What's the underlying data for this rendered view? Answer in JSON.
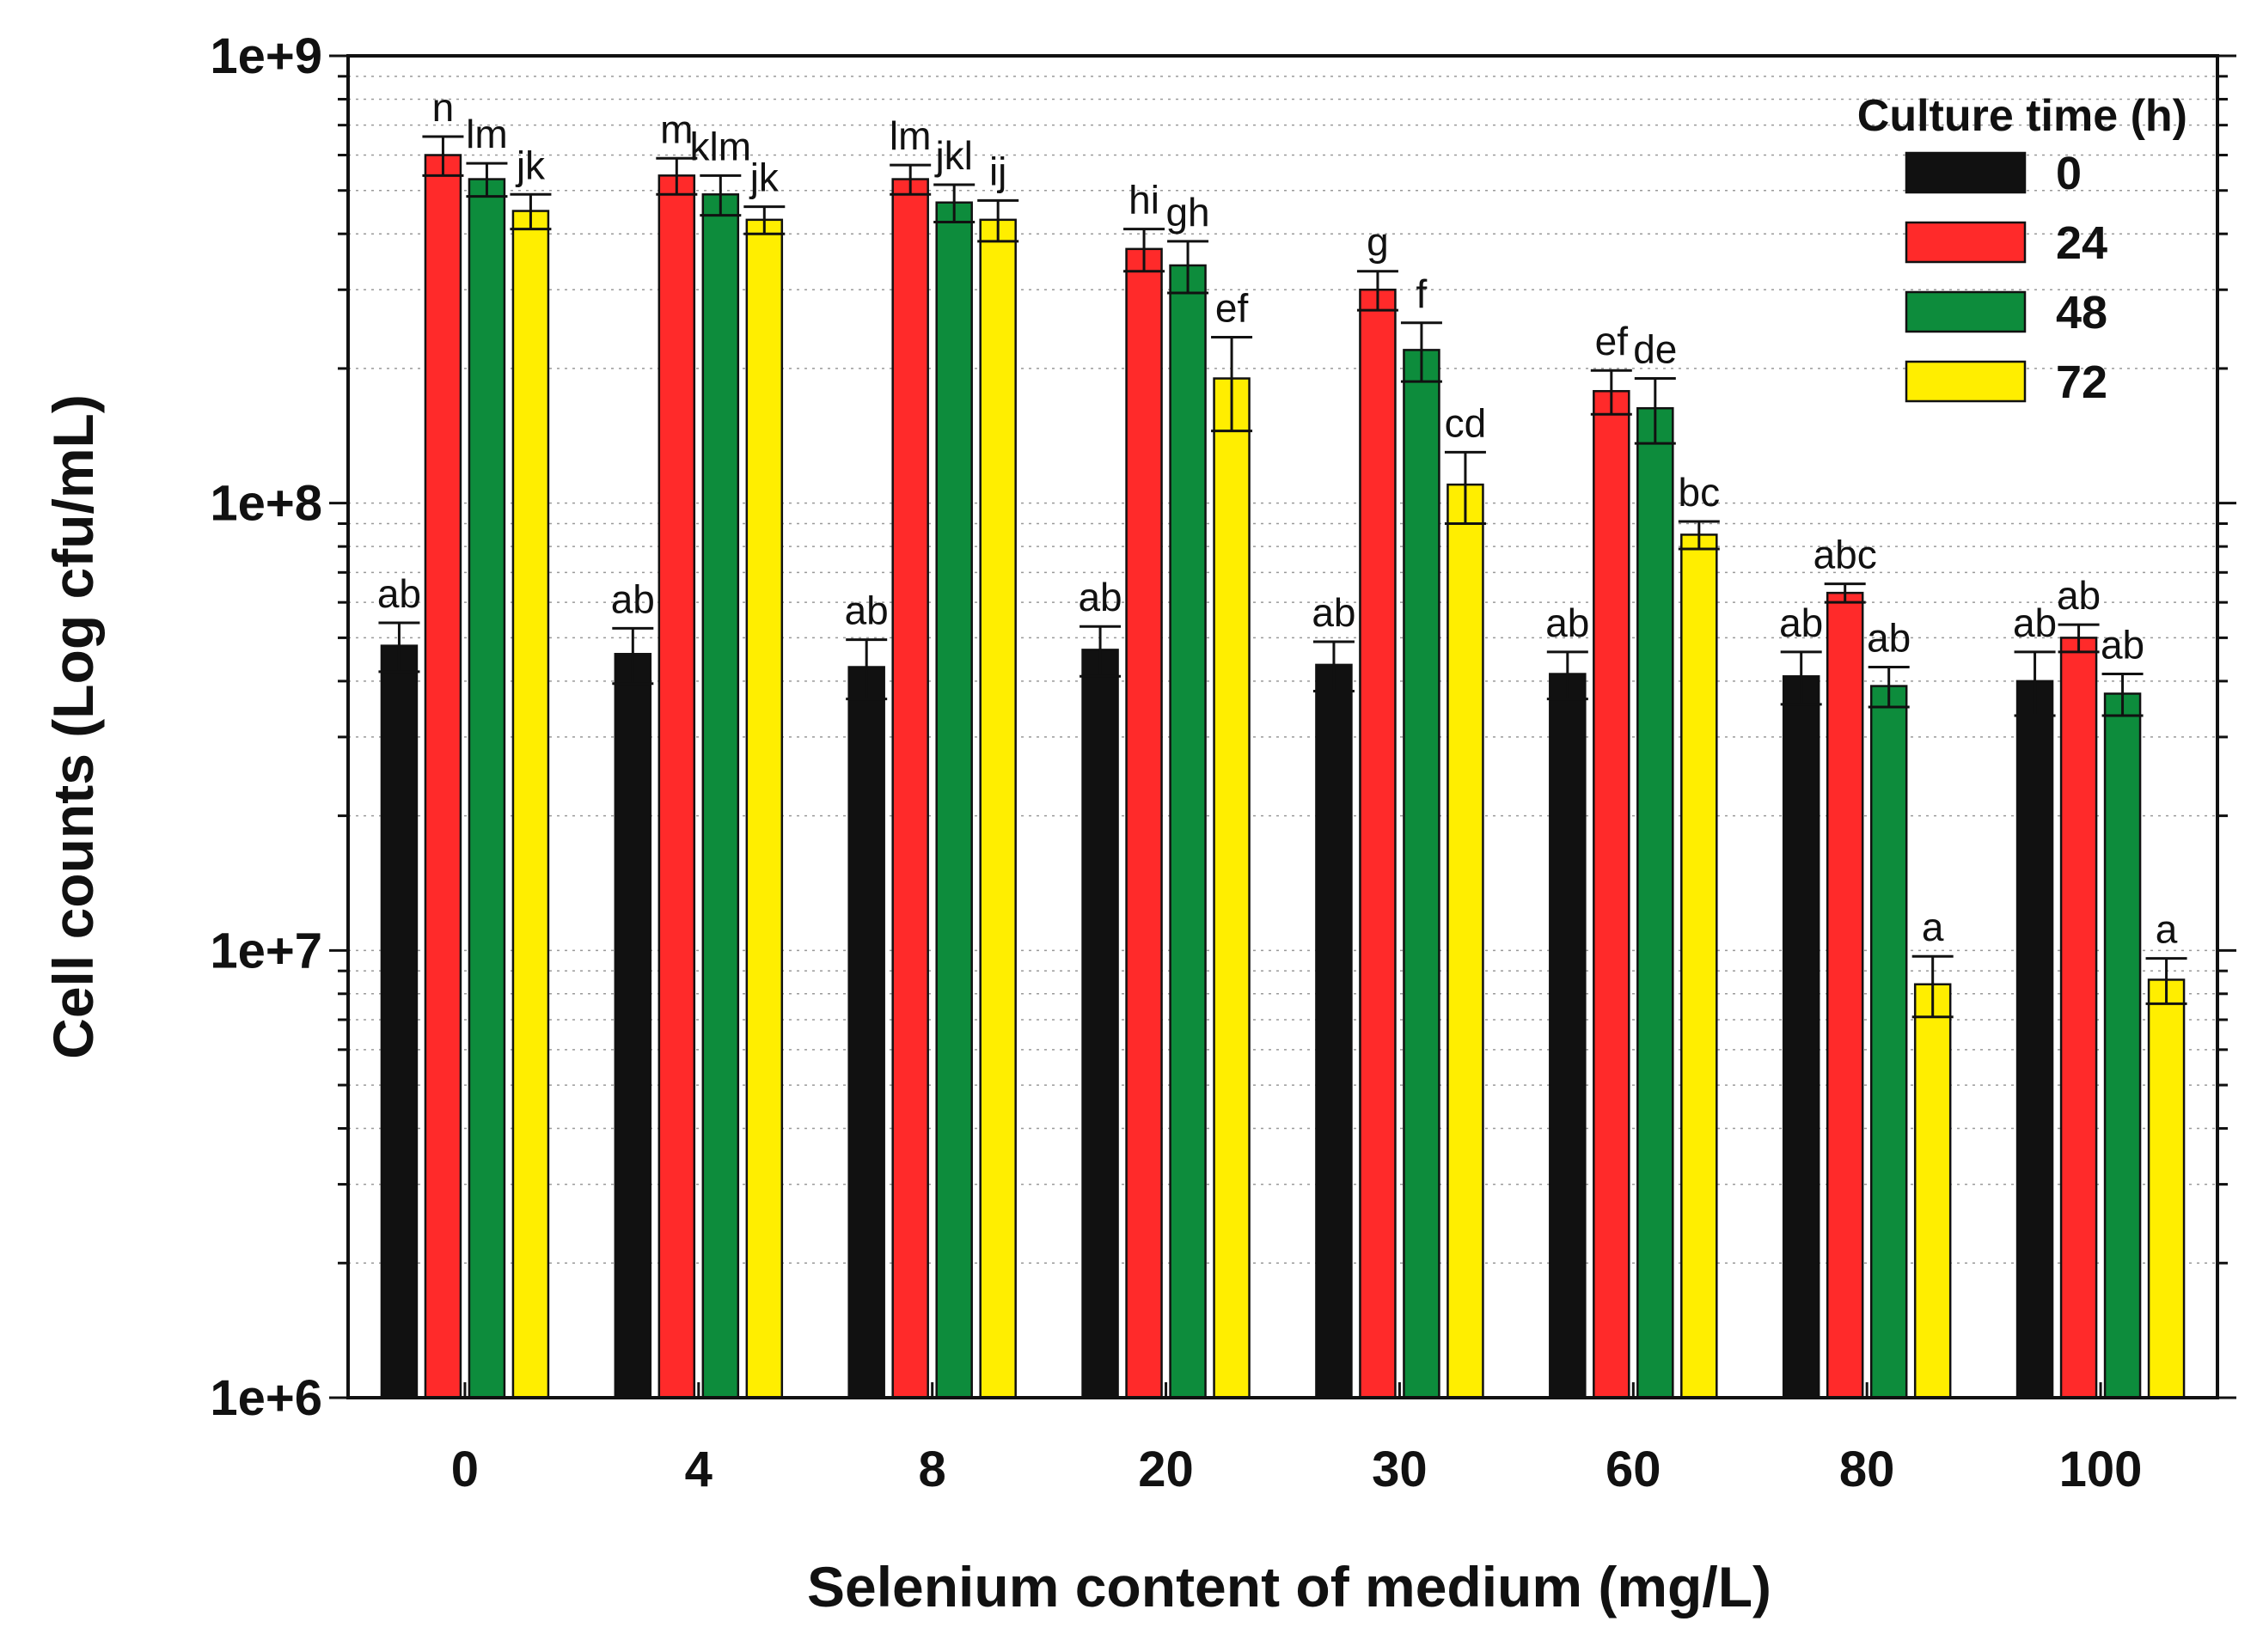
{
  "chart_data": {
    "type": "bar",
    "title": "",
    "xlabel": "Selenium content of medium (mg/L)",
    "ylabel": "Cell counts (Log cfu/mL)",
    "yscale": "log",
    "ylim": [
      1000000,
      1000000000
    ],
    "ytick_labels": [
      "1e+6",
      "1e+7",
      "1e+8",
      "1e+9"
    ],
    "grid": true,
    "legend_title": "Culture time (h)",
    "legend_position": "top-right",
    "categories": [
      "0",
      "4",
      "8",
      "20",
      "30",
      "60",
      "80",
      "100"
    ],
    "series": [
      {
        "name": "0",
        "color": "#111111",
        "values": [
          48000000,
          46000000,
          43000000,
          47000000,
          43500000,
          41500000,
          41000000,
          40000000
        ],
        "errors": [
          6000000,
          6500000,
          6500000,
          6000000,
          5500000,
          5000000,
          5500000,
          6500000
        ],
        "labels": [
          "ab",
          "ab",
          "ab",
          "ab",
          "ab",
          "ab",
          "ab",
          "ab"
        ]
      },
      {
        "name": "24",
        "color": "#ff2a2a",
        "values": [
          600000000,
          540000000,
          530000000,
          370000000,
          300000000,
          178000000,
          63000000,
          50000000
        ],
        "errors": [
          60000000,
          50000000,
          40000000,
          40000000,
          30000000,
          20000000,
          3000000,
          3500000
        ],
        "labels": [
          "n",
          "m",
          "lm",
          "hi",
          "g",
          "ef",
          "abc",
          "ab"
        ]
      },
      {
        "name": "48",
        "color": "#0d8c3c",
        "values": [
          530000000,
          490000000,
          470000000,
          340000000,
          220000000,
          163000000,
          39000000,
          37500000
        ],
        "errors": [
          45000000,
          50000000,
          45000000,
          45000000,
          33000000,
          27000000,
          4000000,
          4000000
        ],
        "labels": [
          "lm",
          "klm",
          "jkl",
          "gh",
          "f",
          "de",
          "ab",
          "ab"
        ]
      },
      {
        "name": "72",
        "color": "#ffee00",
        "values": [
          450000000,
          430000000,
          430000000,
          190000000,
          110000000,
          85000000,
          8400000,
          8600000
        ],
        "errors": [
          40000000,
          30000000,
          45000000,
          45000000,
          20000000,
          6000000,
          1300000,
          1000000
        ],
        "labels": [
          "jk",
          "jk",
          "ij",
          "ef",
          "cd",
          "bc",
          "a",
          "a"
        ]
      }
    ]
  }
}
